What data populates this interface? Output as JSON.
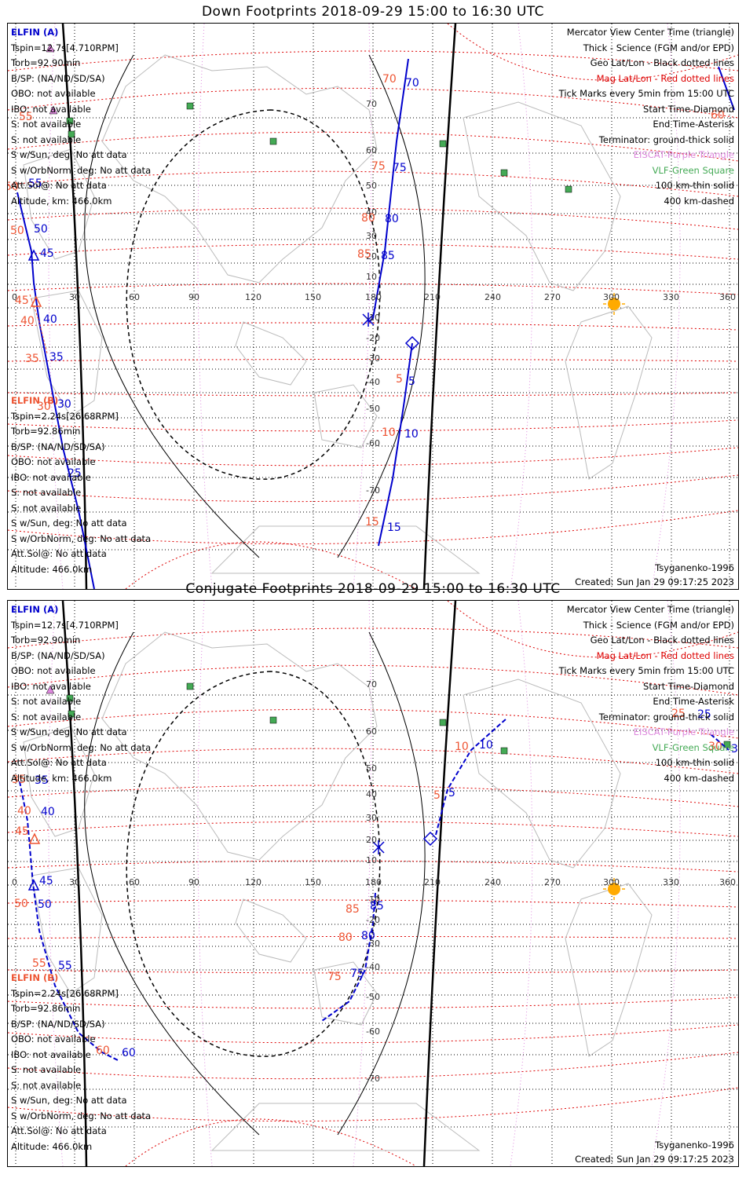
{
  "colors": {
    "elfin_a": "#0000cc",
    "elfin_b": "#ee5533",
    "mag_grid": "#dd0000",
    "geo_grid": "#000000",
    "eiscat": "#dd88dd",
    "vlf": "#44aa55",
    "sun": "#ffaa00",
    "coast": "#bbbbbb"
  },
  "legend": {
    "mercator": "Mercator View Center Time (triangle)",
    "thick": "Thick - Science (FGM and/or EPD)",
    "geo": "Geo Lat/Lon - Black dotted lines",
    "mag": "Mag Lat/Lon - Red dotted lines",
    "ticks": "Tick Marks every 5min from 15:00 UTC",
    "start": "Start Time-Diamond",
    "end": "End Time-Asterisk",
    "terminator": "Terminator: ground-thick solid",
    "eiscat": "EISCAT-Purple Triangle",
    "vlf": "VLF-Green Square",
    "km100": "100 km-thin solid",
    "km400": "400 km-dashed"
  },
  "elfin_a": {
    "title": "ELFIN (A)",
    "tspin": "Tspin=12.7s[4.710RPM]",
    "torb": "Torb=92.90min",
    "bsp": "B/SP: (NA/ND/SD/SA)",
    "obo": "OBO: not available",
    "ibo": "IBO: not available",
    "s1": "S: not available",
    "s2": "S: not available",
    "swsun": "S w/Sun, deg: No att data",
    "sworb": "S w/OrbNorm, deg: No att data",
    "attsol": "Att.Sol@: No att data",
    "alt": "Altitude, km: 466.0km"
  },
  "elfin_b": {
    "title": "ELFIN (B)",
    "tspin": "Tspin=2.24s[26.68RPM]",
    "torb": "Torb=92.86min",
    "bsp": "B/SP: (NA/ND/SD/SA)",
    "obo": "OBO: not available",
    "ibo": "IBO: not available",
    "s1": "S: not available",
    "s2": "S: not available",
    "swsun": "S w/Sun, deg: No att data",
    "sworb": "S w/OrbNorm, deg: No att data",
    "attsol": "Att.Sol@: No att data",
    "alt": "Altitude: 466.0km"
  },
  "model": "Tsyganenko-1996",
  "created": "Created: Sun Jan 29 09:17:25 2023",
  "panels": [
    {
      "title": "Down Footprints 2018-09-29 15:00 to 16:30 UTC",
      "lon_ticks": [
        "0",
        "30",
        "60",
        "90",
        "120",
        "150",
        "180",
        "210",
        "240",
        "270",
        "300",
        "330",
        "360"
      ],
      "lat_ticks": [
        "70",
        "60",
        "50",
        "40",
        "30",
        "20",
        "10",
        "-10",
        "-20",
        "-30",
        "-40",
        "-50",
        "-60",
        "-70"
      ],
      "a_labels": [
        "70",
        "75",
        "80",
        "85",
        "5",
        "10",
        "15",
        "55",
        "50",
        "45",
        "40",
        "35",
        "30",
        "25"
      ],
      "b_labels": [
        "70",
        "75",
        "80",
        "85",
        "5",
        "10",
        "15",
        "50",
        "50",
        "45",
        "40",
        "35",
        "30",
        "60",
        "55"
      ]
    },
    {
      "title": "Conjugate Footprints 2018-09-29 15:00 to 16:30 UTC",
      "lon_ticks": [
        "0",
        "30",
        "60",
        "90",
        "120",
        "150",
        "180",
        "210",
        "240",
        "270",
        "300",
        "330",
        "360"
      ],
      "lat_ticks": [
        "70",
        "60",
        "50",
        "40",
        "30",
        "20",
        "10",
        "-10",
        "-20",
        "-30",
        "-40",
        "-50",
        "-60",
        "-70"
      ],
      "a_labels": [
        "25",
        "30",
        "10",
        "5",
        "85",
        "80",
        "75",
        "35",
        "40",
        "45",
        "50",
        "55",
        "60"
      ],
      "b_labels": [
        "25",
        "30",
        "10",
        "5",
        "85",
        "80",
        "75",
        "35",
        "40",
        "45",
        "50",
        "55",
        "60"
      ]
    }
  ]
}
